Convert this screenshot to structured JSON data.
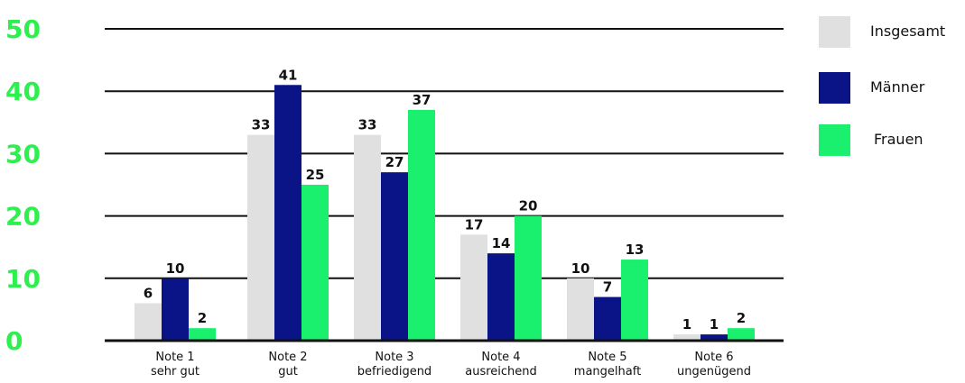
{
  "chart_data": {
    "type": "bar",
    "categories": [
      [
        "Note 1",
        "sehr gut"
      ],
      [
        "Note 2",
        "gut"
      ],
      [
        "Note 3",
        "befriedigend"
      ],
      [
        "Note 4",
        "ausreichend"
      ],
      [
        "Note 5",
        "mangelhaft"
      ],
      [
        "Note 6",
        "ungenügend"
      ]
    ],
    "series": [
      {
        "name": "Insgesamt",
        "color": "#e0e0e0",
        "values": [
          6,
          33,
          33,
          17,
          10,
          1
        ]
      },
      {
        "name": "Männer",
        "color": "#0a1486",
        "values": [
          10,
          41,
          27,
          14,
          7,
          1
        ]
      },
      {
        "name": "Frauen",
        "color": "#1af06e",
        "values": [
          2,
          25,
          37,
          20,
          13,
          2
        ]
      }
    ],
    "yticks": [
      0,
      10,
      20,
      30,
      40,
      50
    ],
    "ylim": [
      0,
      50
    ],
    "ytick_color": "#2df04f",
    "grid": true,
    "legend_position": "right",
    "data_labels": true
  }
}
